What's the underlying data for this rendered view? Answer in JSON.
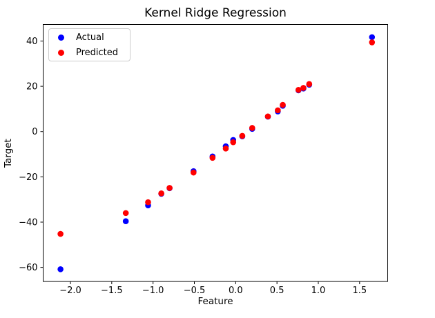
{
  "window": {
    "background": "#ffffff"
  },
  "chart_data": {
    "type": "scatter",
    "title": "Kernel Ridge Regression",
    "xlabel": "Feature",
    "ylabel": "Target",
    "xlim": [
      -2.33,
      1.84
    ],
    "ylim": [
      -66.2,
      47.3
    ],
    "xticks": [
      -2.0,
      -1.5,
      -1.0,
      -0.5,
      0.0,
      0.5,
      1.0,
      1.5
    ],
    "xtick_labels": [
      "−2.0",
      "−1.5",
      "−1.0",
      "−0.5",
      "0.0",
      "0.5",
      "1.0",
      "1.5"
    ],
    "yticks": [
      -60,
      -40,
      -20,
      0,
      20,
      40
    ],
    "ytick_labels": [
      "−60",
      "−40",
      "−20",
      "0",
      "20",
      "40"
    ],
    "grid": false,
    "legend_position": "upper-left",
    "x": [
      -2.12,
      -1.33,
      -1.06,
      -0.9,
      -0.8,
      -0.51,
      -0.28,
      -0.12,
      -0.03,
      0.08,
      0.2,
      0.39,
      0.51,
      0.57,
      0.76,
      0.82,
      0.89,
      1.65
    ],
    "series": [
      {
        "name": "Actual",
        "color": "#0000ff",
        "values": [
          -60.8,
          -39.6,
          -32.6,
          -27.5,
          -25.0,
          -17.5,
          -11.0,
          -6.5,
          -3.7,
          -2.1,
          1.2,
          6.6,
          8.9,
          11.4,
          18.2,
          19.0,
          20.7,
          41.7
        ]
      },
      {
        "name": "Predicted",
        "color": "#ff0000",
        "values": [
          -45.2,
          -36.0,
          -31.2,
          -27.3,
          -24.9,
          -18.1,
          -11.6,
          -7.5,
          -4.7,
          -1.9,
          1.6,
          6.7,
          9.4,
          11.8,
          18.4,
          19.3,
          21.0,
          39.4
        ]
      }
    ]
  }
}
